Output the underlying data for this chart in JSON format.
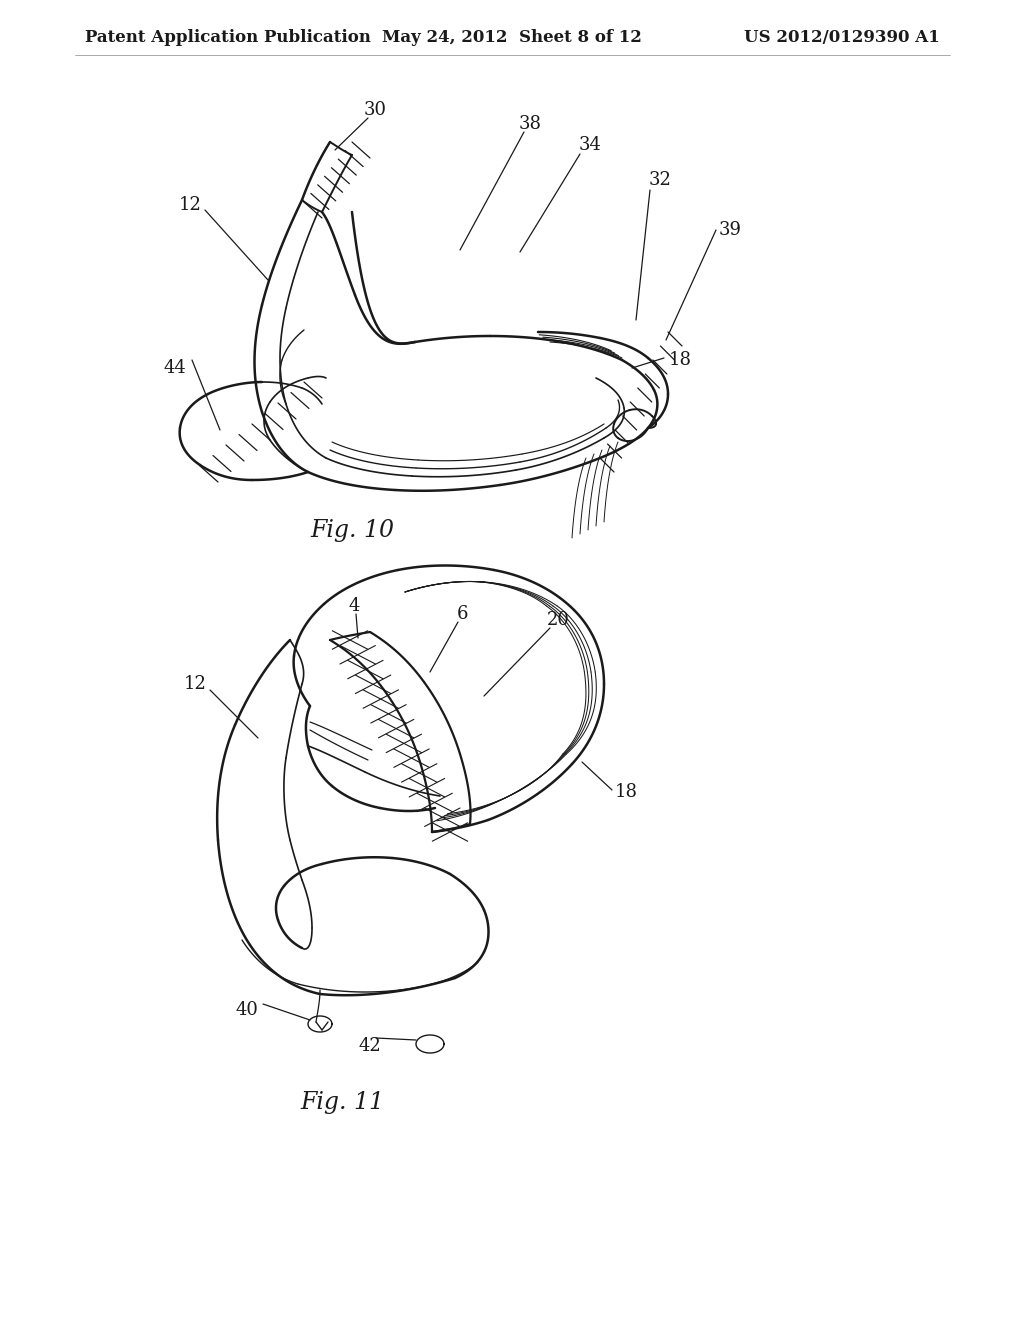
{
  "background_color": "#ffffff",
  "header_left": "Patent Application Publication",
  "header_center": "May 24, 2012  Sheet 8 of 12",
  "header_right": "US 2012/0129390 A1",
  "header_fontsize": 12,
  "fig10_label": "Fig. 10",
  "fig11_label": "Fig. 11",
  "line_color": "#1a1a1a",
  "ref_fontsize": 13,
  "fig_label_fontsize": 17
}
